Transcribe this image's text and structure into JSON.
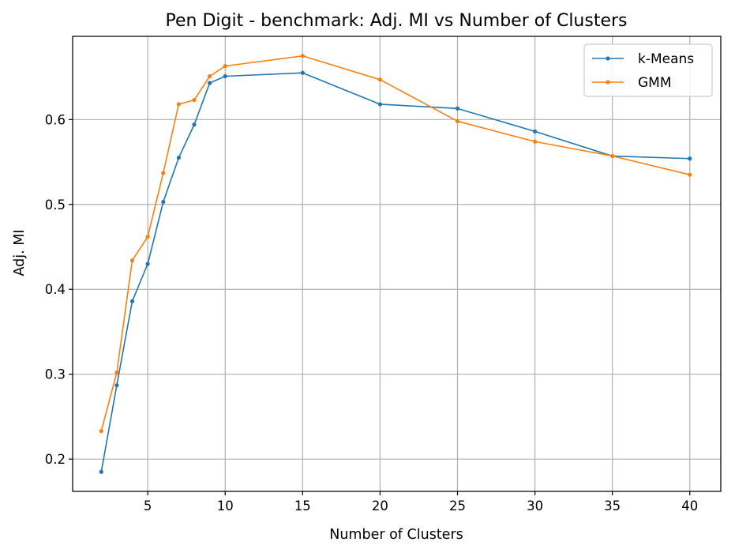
{
  "chart_data": {
    "type": "line",
    "title": "Pen Digit - benchmark: Adj. MI vs Number of Clusters",
    "xlabel": "Number of Clusters",
    "ylabel": "Adj. MI",
    "xlim": [
      0.15,
      42.0
    ],
    "ylim": [
      0.162,
      0.698
    ],
    "xticks": [
      5,
      10,
      15,
      20,
      25,
      30,
      35,
      40
    ],
    "xtick_labels": [
      "5",
      "10",
      "15",
      "20",
      "25",
      "30",
      "35",
      "40"
    ],
    "yticks": [
      0.2,
      0.3,
      0.4,
      0.5,
      0.6
    ],
    "ytick_labels": [
      "0.2",
      "0.3",
      "0.4",
      "0.5",
      "0.6"
    ],
    "grid": true,
    "legend_position": "top-right",
    "x": [
      2,
      3,
      4,
      5,
      6,
      7,
      8,
      9,
      10,
      15,
      20,
      25,
      30,
      35,
      40
    ],
    "series": [
      {
        "name": "k-Means",
        "color": "#1f77b4",
        "values": [
          0.185,
          0.287,
          0.386,
          0.43,
          0.503,
          0.555,
          0.594,
          0.643,
          0.651,
          0.655,
          0.618,
          0.613,
          0.586,
          0.557,
          0.554
        ]
      },
      {
        "name": "GMM",
        "color": "#ff7f0e",
        "values": [
          0.233,
          0.302,
          0.434,
          0.462,
          0.537,
          0.618,
          0.623,
          0.651,
          0.663,
          0.675,
          0.647,
          0.598,
          0.574,
          0.557,
          0.535
        ]
      }
    ]
  }
}
